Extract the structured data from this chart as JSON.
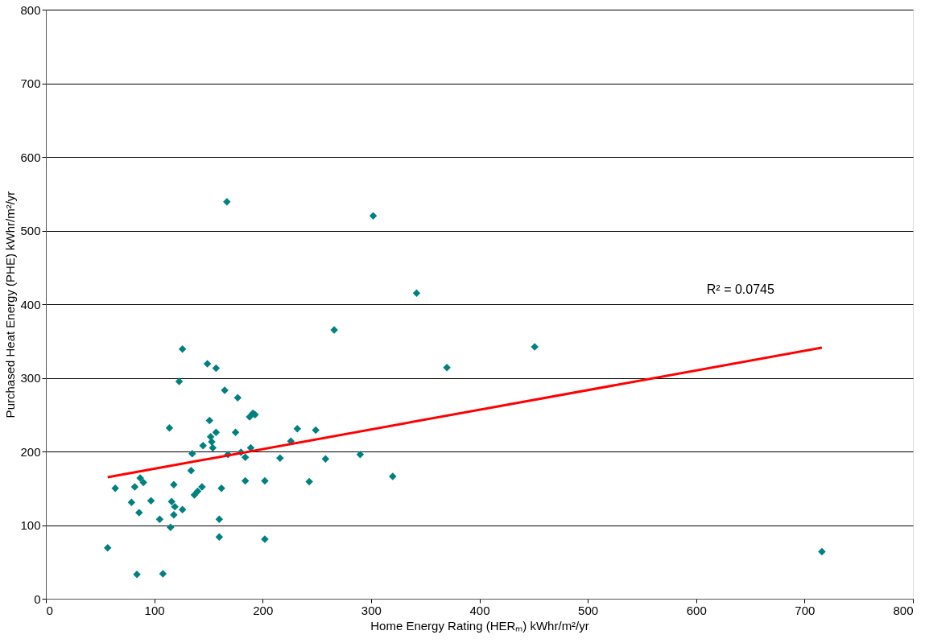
{
  "chart_data": {
    "type": "scatter",
    "xlabel": "Home Energy Rating (HERₘ) kWhr/m²/yr",
    "ylabel": "Purchased Heat Energy (PHE) kWhr/m²/yr",
    "xlim": [
      0,
      800
    ],
    "xticks": [
      0,
      100,
      200,
      300,
      400,
      500,
      600,
      700,
      800
    ],
    "ylim": [
      0,
      800
    ],
    "yticks": [
      0,
      100,
      200,
      300,
      400,
      500,
      600,
      700,
      800
    ],
    "grid": "y",
    "annotations": [
      "R² = 0.0745"
    ],
    "series": [
      {
        "color": "#008080",
        "marker": "diamond",
        "x": [
          57,
          64,
          79,
          82,
          86,
          87,
          90,
          84,
          97,
          105,
          108,
          114,
          115,
          116,
          118,
          118,
          119,
          126,
          123,
          126,
          134,
          135,
          137,
          140,
          144,
          145,
          149,
          151,
          152,
          153,
          154,
          157,
          157,
          160,
          160,
          162,
          165,
          168,
          167,
          175,
          177,
          180,
          184,
          184,
          188,
          191,
          189,
          193,
          202,
          202,
          216,
          226,
          232,
          243,
          249,
          258,
          266,
          290,
          302,
          320,
          342,
          370,
          451,
          716
        ],
        "values": [
          69,
          150,
          131,
          152,
          117,
          164,
          158,
          33,
          133,
          108,
          34,
          232,
          97,
          132,
          114,
          155,
          125,
          121,
          295,
          339,
          174,
          197,
          141,
          146,
          152,
          208,
          319,
          242,
          220,
          213,
          205,
          226,
          313,
          108,
          84,
          150,
          283,
          196,
          539,
          226,
          273,
          199,
          192,
          160,
          247,
          252,
          205,
          250,
          81,
          160,
          191,
          214,
          231,
          159,
          229,
          190,
          365,
          196,
          520,
          166,
          415,
          314,
          342,
          64
        ]
      },
      {
        "type": "line",
        "color": "#ff0000",
        "x": [
          57,
          716
        ],
        "values": [
          165,
          341
        ],
        "marker": "none",
        "line_style": "solid"
      }
    ]
  }
}
